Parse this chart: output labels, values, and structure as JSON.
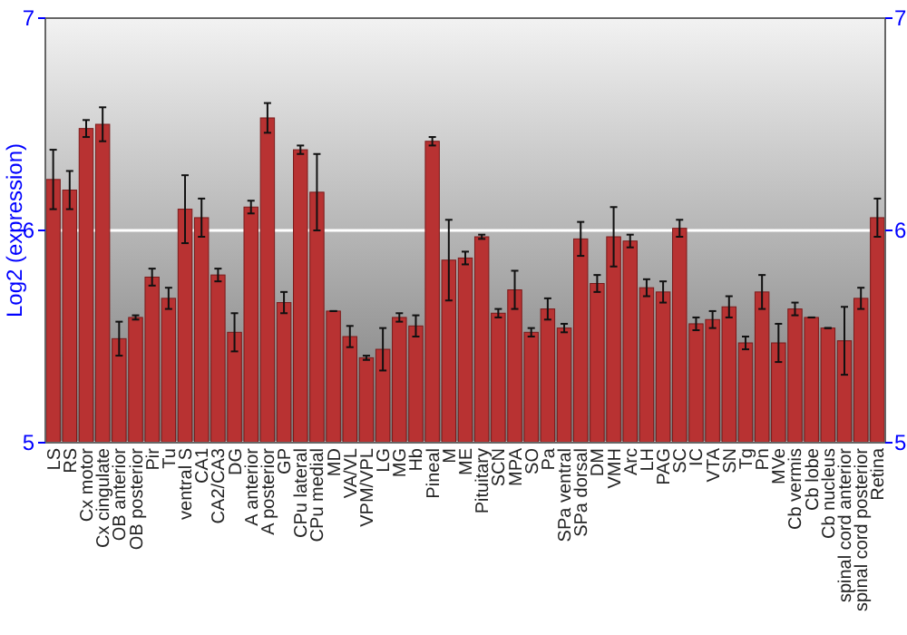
{
  "chart_data": {
    "type": "bar",
    "ylabel": "Log2 (expression)",
    "categories": [
      "LS",
      "RS",
      "Cx motor",
      "Cx cingulate",
      "OB anterior",
      "OB posterior",
      "Pir",
      "Tu",
      "ventral S",
      "CA1",
      "CA2/CA3",
      "DG",
      "A anterior",
      "A posterior",
      "GP",
      "CPu lateral",
      "CPu medial",
      "MD",
      "VA/VL",
      "VPM/VPL",
      "LG",
      "MG",
      "Hb",
      "Pineal",
      "M",
      "ME",
      "Pituitary",
      "SCN",
      "MPA",
      "SO",
      "Pa",
      "SPa ventral",
      "SPa dorsal",
      "DM",
      "VMH",
      "Arc",
      "LH",
      "PAG",
      "SC",
      "IC",
      "VTA",
      "SN",
      "Tg",
      "Pn",
      "MVe",
      "Cb vermis",
      "Cb lobe",
      "Cb nucleus",
      "spinal cord anterior",
      "spinal cord posterior",
      "Retina"
    ],
    "values": [
      6.24,
      6.19,
      6.48,
      6.5,
      5.49,
      5.59,
      5.78,
      5.68,
      6.1,
      6.06,
      5.79,
      5.52,
      6.11,
      6.53,
      5.66,
      6.38,
      6.18,
      5.62,
      5.5,
      5.4,
      5.44,
      5.59,
      5.55,
      6.42,
      5.86,
      5.87,
      5.97,
      5.61,
      5.72,
      5.52,
      5.63,
      5.54,
      5.96,
      5.75,
      5.97,
      5.95,
      5.73,
      5.71,
      6.01,
      5.56,
      5.58,
      5.64,
      5.47,
      5.71,
      5.47,
      5.63,
      5.59,
      5.54,
      5.48,
      5.68,
      6.06
    ],
    "errors": [
      0.14,
      0.09,
      0.04,
      0.08,
      0.08,
      0.01,
      0.04,
      0.05,
      0.16,
      0.09,
      0.03,
      0.09,
      0.03,
      0.07,
      0.05,
      0.02,
      0.18,
      0,
      0.05,
      0.01,
      0.1,
      0.02,
      0.05,
      0.02,
      0.19,
      0.03,
      0.01,
      0.02,
      0.09,
      0.02,
      0.05,
      0.02,
      0.08,
      0.04,
      0.14,
      0.03,
      0.04,
      0.05,
      0.04,
      0.03,
      0.04,
      0.05,
      0.03,
      0.08,
      0.09,
      0.03,
      0,
      0,
      0.16,
      0.05,
      0.09
    ],
    "color": "#b83232",
    "ylim": [
      5,
      7
    ],
    "yticks": [
      5,
      6,
      7
    ],
    "y2lim": [
      5,
      7
    ],
    "y2ticks": [
      5,
      6,
      7
    ],
    "grid": "y"
  }
}
